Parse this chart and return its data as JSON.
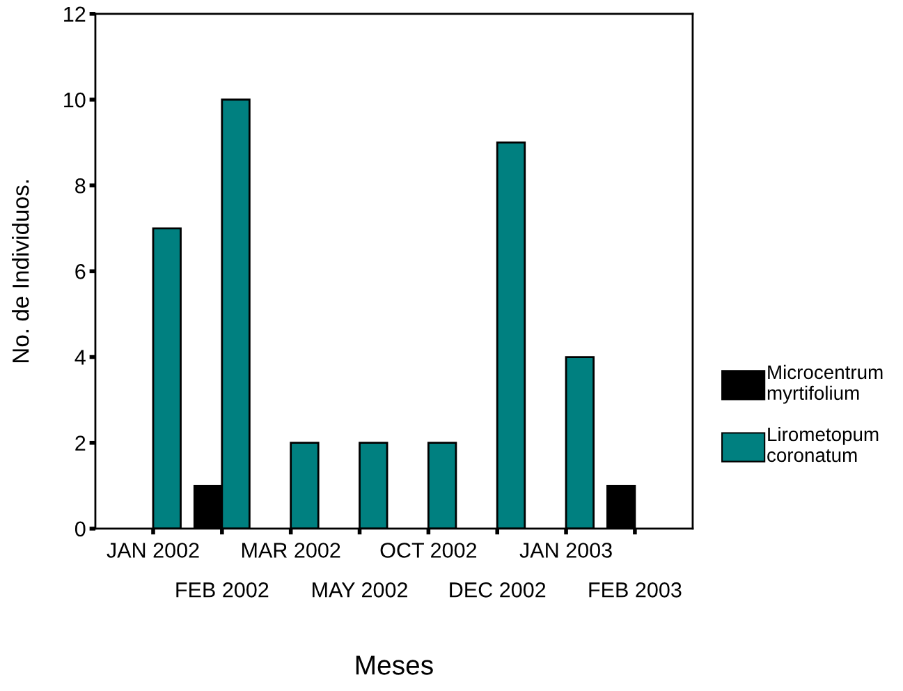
{
  "chart_data": {
    "type": "bar",
    "xlabel": "Meses",
    "ylabel": "No. de Individuos.",
    "categories": [
      "JAN 2002",
      "FEB 2002",
      "MAR 2002",
      "MAY 2002",
      "OCT 2002",
      "DEC 2002",
      "JAN 2003",
      "FEB 2003"
    ],
    "series": [
      {
        "name": "Microcentrum myrtifolium",
        "color": "#000000",
        "values": [
          null,
          1,
          null,
          null,
          null,
          null,
          null,
          1
        ]
      },
      {
        "name": "Lirometopum coronatum",
        "color": "#008080",
        "values": [
          7,
          10,
          2,
          2,
          2,
          9,
          4,
          null
        ]
      }
    ],
    "ylim": [
      0,
      12
    ],
    "yticks": [
      0,
      2,
      4,
      6,
      8,
      10,
      12
    ],
    "grid": false,
    "legend": "right"
  }
}
